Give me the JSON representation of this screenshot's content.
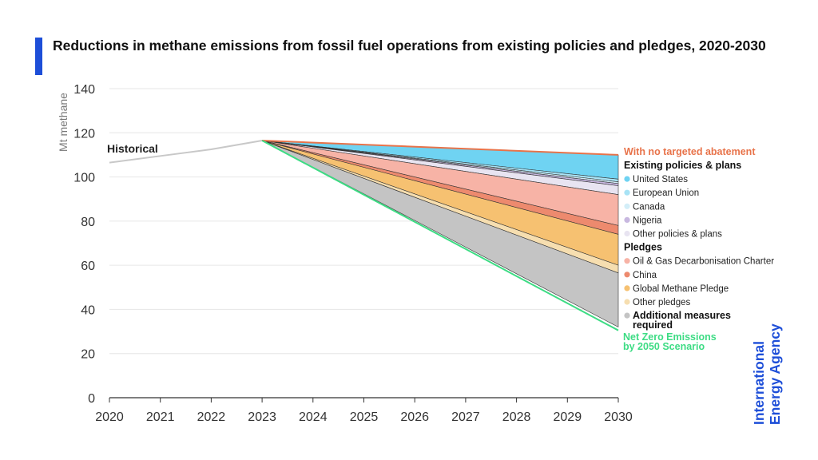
{
  "colors": {
    "accent": "#1d4ed8",
    "historical": "#c8c8c8",
    "no_abatement": "#e8734a",
    "nze": "#3ddc84",
    "grid": "#e6e6e6",
    "axis": "#333333"
  },
  "chart_data": {
    "type": "area",
    "title": "Reductions in methane emissions from fossil fuel operations from existing policies and pledges, 2020-2030",
    "ylabel": "Mt methane",
    "xlabel": "",
    "ylim": [
      0,
      140
    ],
    "yticks": [
      0,
      20,
      40,
      60,
      80,
      100,
      120,
      140
    ],
    "x": [
      "2020",
      "2021",
      "2022",
      "2023",
      "2024",
      "2025",
      "2026",
      "2027",
      "2028",
      "2029",
      "2030"
    ],
    "grid": true,
    "legend_position": "right",
    "historical": {
      "label": "Historical",
      "x": [
        2020,
        2021,
        2022,
        2023
      ],
      "values": [
        106.5,
        109.5,
        112.5,
        116.5
      ]
    },
    "no_abatement": {
      "label": "With no targeted abatement",
      "x": [
        2023,
        2030
      ],
      "values": [
        116.5,
        110
      ]
    },
    "nze": {
      "label_line1": "Net Zero Emissions",
      "label_line2": "by 2050 Scenario",
      "x": [
        2023,
        2030
      ],
      "values": [
        116.5,
        30.5
      ]
    },
    "groups": [
      {
        "heading": "Existing policies & plans",
        "indices": [
          0,
          1,
          2,
          3,
          4
        ]
      },
      {
        "heading": "Pledges",
        "indices": [
          5,
          6,
          7,
          8,
          9
        ]
      }
    ],
    "series": [
      {
        "name": "United States",
        "color": "#6fd3f2",
        "reduction_2030": 11
      },
      {
        "name": "European Union",
        "color": "#a8e3f5",
        "reduction_2030": 1.2
      },
      {
        "name": "Canada",
        "color": "#d3eef8",
        "reduction_2030": 0.8
      },
      {
        "name": "Nigeria",
        "color": "#c8b8e0",
        "reduction_2030": 1
      },
      {
        "name": "Other policies & plans",
        "color": "#e8e4f1",
        "reduction_2030": 4
      },
      {
        "name": "Oil & Gas Decarbonisation Charter",
        "color": "#f7b3a6",
        "reduction_2030": 14
      },
      {
        "name": "China",
        "color": "#ed8a6e",
        "reduction_2030": 4
      },
      {
        "name": "Global Methane Pledge",
        "color": "#f6c171",
        "reduction_2030": 14
      },
      {
        "name": "Other pledges",
        "color": "#f6deb0",
        "reduction_2030": 3.5
      },
      {
        "name": "Additional measures required",
        "name_line1": "Additional measures",
        "name_line2": "required",
        "color": "#c4c4c4",
        "reduction_2030": 24.5
      }
    ]
  }
}
